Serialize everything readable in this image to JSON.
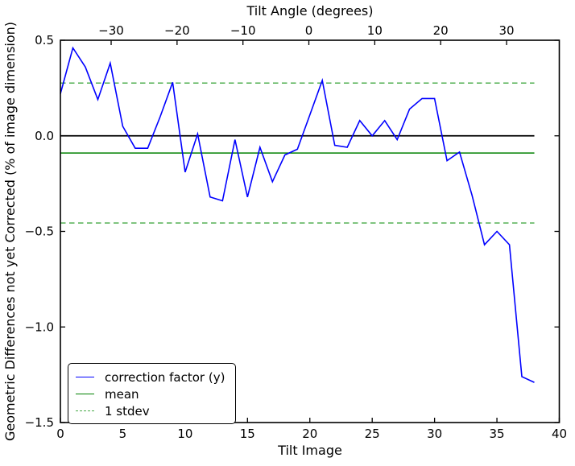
{
  "chart_data": {
    "type": "line",
    "top_axis": {
      "label": "Tilt Angle (degrees)",
      "ticks": [
        -30,
        -20,
        -10,
        0,
        10,
        20,
        30
      ],
      "tick_labels": [
        "−30",
        "−20",
        "−10",
        "0",
        "10",
        "20",
        "30"
      ],
      "range": [
        -37.7,
        38.0
      ]
    },
    "x_axis": {
      "label": "Tilt Image",
      "ticks": [
        0,
        5,
        10,
        15,
        20,
        25,
        30,
        35,
        40
      ],
      "tick_labels": [
        "0",
        "5",
        "10",
        "15",
        "20",
        "25",
        "30",
        "35",
        "40"
      ],
      "range": [
        0,
        40
      ]
    },
    "y_axis": {
      "label": "Geometric Differences not yet Corrected (% of image dimension)",
      "ticks": [
        0.5,
        0.0,
        -0.5,
        -1.0,
        -1.5
      ],
      "tick_labels": [
        "0.5",
        "0.0",
        "−0.5",
        "−1.0",
        "−1.5"
      ],
      "range": [
        -1.5,
        0.5
      ]
    },
    "x": [
      0,
      1,
      2,
      3,
      4,
      5,
      6,
      7,
      8,
      9,
      10,
      11,
      12,
      13,
      14,
      15,
      16,
      17,
      18,
      19,
      20,
      21,
      22,
      23,
      24,
      25,
      26,
      27,
      28,
      29,
      30,
      31,
      32,
      33,
      34,
      35,
      36,
      37,
      38
    ],
    "series": [
      {
        "name": "correction factor (y)",
        "color": "#0000ff",
        "style": "solid",
        "values": [
          0.22,
          0.46,
          0.36,
          0.19,
          0.38,
          0.05,
          -0.065,
          -0.065,
          0.1,
          0.28,
          -0.19,
          0.01,
          -0.32,
          -0.34,
          -0.02,
          -0.32,
          -0.06,
          -0.24,
          -0.1,
          -0.07,
          0.11,
          0.29,
          -0.05,
          -0.06,
          0.08,
          0.0,
          0.08,
          -0.02,
          0.14,
          0.195,
          0.195,
          -0.13,
          -0.085,
          -0.31,
          -0.57,
          -0.5,
          -0.57,
          -1.26,
          -1.29
        ]
      }
    ],
    "reference_lines": {
      "zero": {
        "value": 0.0,
        "color": "#000000"
      },
      "mean": {
        "value": -0.09,
        "color": "#008000"
      },
      "stdev_upper": {
        "value": 0.276,
        "color": "#44a944"
      },
      "stdev_lower": {
        "value": -0.456,
        "color": "#44a944"
      },
      "stdev_magnitude": 0.366
    },
    "legend": {
      "position": "lower left",
      "entries": [
        {
          "label": "correction factor (y)",
          "color": "#0000ff",
          "style": "solid"
        },
        {
          "label": "mean",
          "color": "#008000",
          "style": "solid"
        },
        {
          "label": "1 stdev",
          "color": "#44a944",
          "style": "dashed"
        }
      ]
    },
    "grid": false
  }
}
